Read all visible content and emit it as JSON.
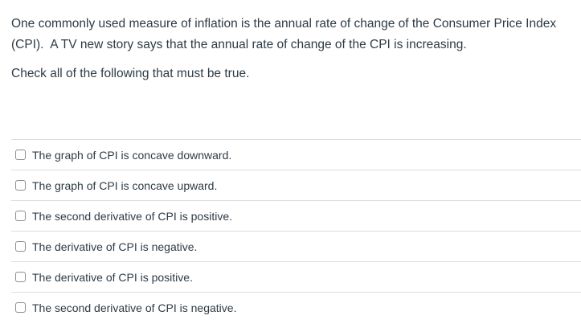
{
  "question": {
    "line1": "One commonly used measure of inflation is the annual rate of change of the Consumer Price Index",
    "line2": "(CPI).  A TV new story says that the annual rate of change of the CPI is increasing.",
    "prompt": "Check all of the following that must be true."
  },
  "options": [
    {
      "label": "The graph of CPI is concave downward.",
      "checked": false
    },
    {
      "label": "The graph of CPI is concave upward.",
      "checked": false
    },
    {
      "label": "The second derivative of CPI is positive.",
      "checked": false
    },
    {
      "label": "The derivative of CPI is negative.",
      "checked": false
    },
    {
      "label": "The derivative of CPI is positive.",
      "checked": false
    },
    {
      "label": "The second derivative of CPI is negative.",
      "checked": false
    }
  ],
  "colors": {
    "background": "#FFFFFF",
    "text": "#2D3B45",
    "divider": "#DDDDDD",
    "checkbox_border": "#8E8E8E"
  }
}
